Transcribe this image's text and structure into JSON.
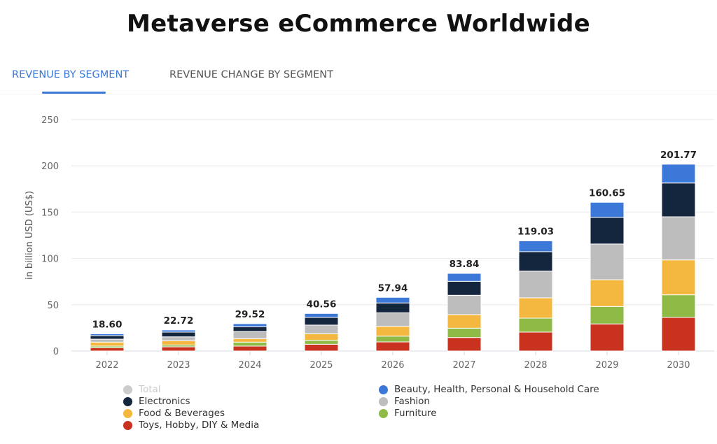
{
  "title": "Metaverse eCommerce Worldwide",
  "tabs": [
    {
      "label": "REVENUE BY SEGMENT",
      "active": true
    },
    {
      "label": "REVENUE CHANGE BY SEGMENT",
      "active": false
    }
  ],
  "chart_data": {
    "type": "bar",
    "stacked": true,
    "title": "Metaverse eCommerce Worldwide",
    "xlabel": "",
    "ylabel": "in billion USD (US$)",
    "ylim": [
      0,
      250
    ],
    "yticks": [
      0,
      50,
      100,
      150,
      200,
      250
    ],
    "grid": true,
    "legend_position": "bottom",
    "categories": [
      "2022",
      "2023",
      "2024",
      "2025",
      "2026",
      "2027",
      "2028",
      "2029",
      "2030"
    ],
    "totals": [
      18.6,
      22.72,
      29.52,
      40.56,
      57.94,
      83.84,
      119.03,
      160.65,
      201.77
    ],
    "total_labels": [
      "18.60",
      "22.72",
      "29.52",
      "40.56",
      "57.94",
      "83.84",
      "119.03",
      "160.65",
      "201.77"
    ],
    "series": [
      {
        "name": "Toys, Hobby, DIY & Media",
        "color": "#c8321e",
        "values": [
          3.5,
          4.5,
          5.3,
          7.3,
          9.8,
          14.6,
          20.4,
          29.2,
          36.3
        ]
      },
      {
        "name": "Furniture",
        "color": "#8fba45",
        "values": [
          1.8,
          2.0,
          4.3,
          4.3,
          6.3,
          10.1,
          15.1,
          18.9,
          24.4
        ]
      },
      {
        "name": "Food & Beverages",
        "color": "#f4b73f",
        "values": [
          4.3,
          4.6,
          3.8,
          7.1,
          10.6,
          14.6,
          21.9,
          28.9,
          37.7
        ]
      },
      {
        "name": "Fashion",
        "color": "#bdbdbd",
        "values": [
          3.2,
          4.2,
          7.7,
          9.3,
          14.6,
          20.9,
          28.9,
          38.6,
          46.6
        ]
      },
      {
        "name": "Electronics",
        "color": "#14253e",
        "values": [
          3.8,
          5.1,
          5.1,
          8.3,
          10.6,
          15.1,
          21.0,
          28.7,
          36.5
        ]
      },
      {
        "name": "Beauty, Health, Personal & Household Care",
        "color": "#3c78d8",
        "values": [
          2.0,
          2.32,
          3.32,
          4.26,
          6.04,
          8.54,
          11.73,
          16.35,
          20.27
        ]
      }
    ],
    "legend": [
      {
        "name": "Total",
        "color": "#cccccc",
        "hidden": true
      },
      {
        "name": "Beauty, Health, Personal & Household Care",
        "color": "#3c78d8"
      },
      {
        "name": "Electronics",
        "color": "#14253e"
      },
      {
        "name": "Fashion",
        "color": "#bdbdbd"
      },
      {
        "name": "Food & Beverages",
        "color": "#f4b73f"
      },
      {
        "name": "Furniture",
        "color": "#8fba45"
      },
      {
        "name": "Toys, Hobby, DIY & Media",
        "color": "#c8321e"
      }
    ]
  }
}
